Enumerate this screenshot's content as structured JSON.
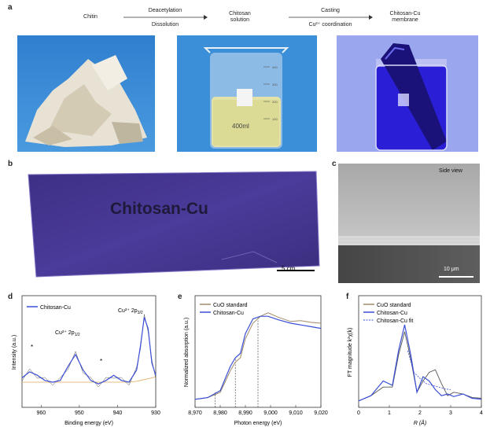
{
  "panel_a": {
    "label": "a",
    "steps": [
      "Chitin",
      "Chitosan\nsolution",
      "Chitosan-Cu\nmembrane"
    ],
    "arrow1_top": "Deacetylation",
    "arrow1_bottom": "Dissolution",
    "arrow2_top": "Casting",
    "arrow2_bottom": "Cu²⁺ coordination",
    "beaker_text": "400ml",
    "beaker_marks": [
      "400",
      "300",
      "200",
      "100"
    ]
  },
  "panel_b": {
    "label": "b",
    "membrane_text": "Chitosan-Cu",
    "scale": "5 cm"
  },
  "panel_c": {
    "label": "c",
    "caption": "Side view",
    "scale": "10 μm"
  },
  "panel_d": {
    "label": "d",
    "legend": "Chitosan-Cu",
    "peak1": "Cu²⁺ 2p",
    "peak1_sub": "1/2",
    "peak2": "Cu²⁺ 2p",
    "peak2_sub": "3/2",
    "star": "*",
    "ylabel": "Intensity (a.u.)",
    "xlabel": "Binding energy (eV)",
    "xticks": [
      "960",
      "950",
      "940",
      "930"
    ]
  },
  "panel_e": {
    "label": "e",
    "legend": [
      "CuO standard",
      "Chitosan-Cu"
    ],
    "ylabel": "Normalized absorption (a.u.)",
    "xlabel": "Photon energy (eV)",
    "xticks": [
      "8,970",
      "8,980",
      "8,990",
      "9,000",
      "9,010",
      "9,020"
    ]
  },
  "panel_f": {
    "label": "f",
    "legend": [
      "CuO standard",
      "Chitosan-Cu",
      "Chitosan-Cu fit"
    ],
    "ylabel": "FT magnitude k²χ(k)",
    "xlabel": "R (Å)",
    "xticks": [
      "0",
      "1",
      "2",
      "3",
      "4"
    ]
  },
  "chart_data": [
    {
      "type": "line",
      "xlabel": "Binding energy (eV)",
      "ylabel": "Intensity (a.u.)",
      "xlim": [
        965,
        930
      ],
      "series": [
        {
          "name": "Chitosan-Cu",
          "x": [
            965,
            963,
            961,
            959,
            957,
            955,
            953,
            951,
            949,
            947,
            945,
            943,
            941,
            939,
            937,
            935,
            934,
            933,
            932,
            931,
            930
          ],
          "y": [
            0.25,
            0.32,
            0.28,
            0.22,
            0.2,
            0.22,
            0.38,
            0.52,
            0.34,
            0.22,
            0.18,
            0.22,
            0.28,
            0.22,
            0.2,
            0.34,
            0.62,
            0.95,
            0.82,
            0.42,
            0.28
          ]
        }
      ]
    },
    {
      "type": "line",
      "xlabel": "Photon energy (eV)",
      "ylabel": "Normalized absorption (a.u.)",
      "xlim": [
        8970,
        9020
      ],
      "series": [
        {
          "name": "CuO standard",
          "x": [
            8970,
            8975,
            8980,
            8984,
            8986,
            8988,
            8990,
            8993,
            8996,
            8999,
            9003,
            9008,
            9012,
            9016,
            9020
          ],
          "y": [
            0.02,
            0.04,
            0.1,
            0.35,
            0.45,
            0.5,
            0.72,
            0.9,
            0.98,
            1.02,
            0.97,
            0.92,
            0.93,
            0.91,
            0.9
          ]
        },
        {
          "name": "Chitosan-Cu",
          "x": [
            8970,
            8975,
            8980,
            8984,
            8986,
            8988,
            8990,
            8993,
            8996,
            8999,
            9003,
            9008,
            9012,
            9016,
            9020
          ],
          "y": [
            0.02,
            0.04,
            0.12,
            0.4,
            0.5,
            0.55,
            0.78,
            0.95,
            0.98,
            0.98,
            0.94,
            0.9,
            0.88,
            0.86,
            0.84
          ]
        }
      ]
    },
    {
      "type": "line",
      "xlabel": "R (Å)",
      "ylabel": "FT magnitude k²χ(k)",
      "xlim": [
        0,
        4
      ],
      "series": [
        {
          "name": "CuO standard",
          "x": [
            0,
            0.4,
            0.8,
            1.1,
            1.3,
            1.5,
            1.7,
            1.9,
            2.1,
            2.3,
            2.5,
            2.7,
            2.9,
            3.1,
            3.4,
            3.7,
            4.0
          ],
          "y": [
            0.02,
            0.08,
            0.18,
            0.18,
            0.55,
            0.82,
            0.5,
            0.12,
            0.25,
            0.35,
            0.38,
            0.22,
            0.08,
            0.12,
            0.1,
            0.06,
            0.05
          ]
        },
        {
          "name": "Chitosan-Cu",
          "x": [
            0,
            0.4,
            0.8,
            1.1,
            1.3,
            1.5,
            1.7,
            1.9,
            2.1,
            2.3,
            2.5,
            2.7,
            2.9,
            3.1,
            3.4,
            3.7,
            4.0
          ],
          "y": [
            0.02,
            0.08,
            0.25,
            0.2,
            0.6,
            0.9,
            0.55,
            0.12,
            0.3,
            0.25,
            0.15,
            0.08,
            0.1,
            0.07,
            0.1,
            0.05,
            0.04
          ]
        },
        {
          "name": "Chitosan-Cu fit",
          "x": [
            1.6,
            1.8,
            2.0,
            2.2,
            2.4,
            2.6,
            2.8,
            3.0
          ],
          "y": [
            0.6,
            0.35,
            0.28,
            0.22,
            0.2,
            0.18,
            0.16,
            0.15
          ]
        }
      ]
    }
  ]
}
